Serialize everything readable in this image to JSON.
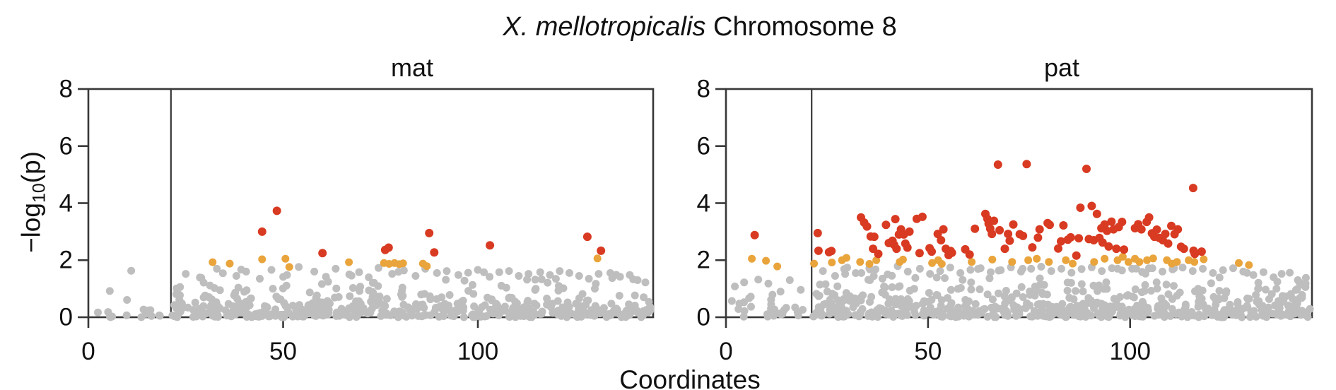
{
  "title": {
    "species": "X. mellotropicalis",
    "rest": " Chromosome 8"
  },
  "chart_data": {
    "type": "scatter",
    "title": "X. mellotropicalis Chromosome 8",
    "xlabel": "Coordinates",
    "ylabel": "−log10(p)",
    "ylabel_parts": {
      "pre": "−log",
      "sub": "10",
      "post": "(p)"
    },
    "x_ticks": [
      0,
      50,
      100
    ],
    "y_ticks": [
      0,
      2,
      4,
      6,
      8
    ],
    "xlim": [
      0,
      145
    ],
    "ylim": [
      0,
      8
    ],
    "grid": false,
    "threshold_line_x": 21.2,
    "colors": {
      "gray": "#bebebe",
      "orange": "#e9a43c",
      "red": "#d83a22",
      "axis": "#383838"
    },
    "panels": [
      {
        "title": "mat",
        "red_points": [
          [
            44.6,
            3.0
          ],
          [
            48.4,
            3.73
          ],
          [
            60.1,
            2.25
          ],
          [
            76.2,
            2.36
          ],
          [
            77.1,
            2.44
          ],
          [
            87.5,
            2.95
          ],
          [
            88.8,
            2.27
          ],
          [
            103.1,
            2.52
          ],
          [
            128.1,
            2.82
          ],
          [
            131.6,
            2.33
          ]
        ],
        "orange_points": [
          [
            31.9,
            1.93
          ],
          [
            36.3,
            1.88
          ],
          [
            44.6,
            2.03
          ],
          [
            50.6,
            2.05
          ],
          [
            51.6,
            1.76
          ],
          [
            66.9,
            1.93
          ],
          [
            75.9,
            1.9
          ],
          [
            77.2,
            1.87
          ],
          [
            78.6,
            1.9
          ],
          [
            79.8,
            1.86
          ],
          [
            80.8,
            1.89
          ],
          [
            85.9,
            1.88
          ],
          [
            86.9,
            1.79
          ],
          [
            130.7,
            2.06
          ]
        ],
        "gray_points": [
          [
            11.0,
            1.63
          ],
          [
            5.5,
            0.92
          ],
          [
            25,
            1.52
          ],
          [
            29,
            1.38
          ],
          [
            33,
            1.7
          ],
          [
            38,
            1.45
          ],
          [
            40.5,
            1.6
          ],
          [
            44,
            1.35
          ],
          [
            47,
            1.66
          ],
          [
            51,
            1.48
          ],
          [
            54,
            1.76
          ],
          [
            58,
            1.6
          ],
          [
            61,
            1.42
          ],
          [
            63.5,
            1.7
          ],
          [
            67,
            1.5
          ],
          [
            69.5,
            1.58
          ],
          [
            72,
            1.4
          ],
          [
            74.5,
            1.73
          ],
          [
            78,
            1.52
          ],
          [
            81,
            1.64
          ],
          [
            84,
            1.45
          ],
          [
            86.5,
            1.7
          ],
          [
            89.5,
            1.55
          ],
          [
            92,
            1.62
          ],
          [
            95,
            1.48
          ],
          [
            97.5,
            1.56
          ],
          [
            100,
            1.66
          ],
          [
            103,
            1.42
          ],
          [
            105.5,
            1.58
          ],
          [
            108,
            1.62
          ],
          [
            110.5,
            1.45
          ],
          [
            113,
            1.52
          ],
          [
            116,
            1.58
          ],
          [
            118.5,
            1.48
          ],
          [
            121,
            1.62
          ],
          [
            123.5,
            1.55
          ],
          [
            126,
            1.45
          ],
          [
            128.5,
            1.35
          ],
          [
            131,
            1.52
          ],
          [
            134,
            1.55
          ],
          [
            136.5,
            1.42
          ],
          [
            139,
            1.48
          ],
          [
            141,
            1.3
          ],
          [
            143,
            1.22
          ]
        ],
        "gray_cloud": {
          "seed": 11,
          "count": 520,
          "x": [
            21.5,
            144.5
          ],
          "y_scale": 0.4,
          "y_cap": 0.985
        },
        "gray_cloud_left": {
          "seed": 5,
          "count": 15,
          "x": [
            0.8,
            20.2
          ],
          "y_scale": 0.2,
          "y_cap": 0.96
        }
      },
      {
        "title": "pat",
        "red_points": [
          [
            7.1,
            2.88
          ],
          [
            22.7,
            2.95
          ],
          [
            22.9,
            2.33
          ],
          [
            25.5,
            2.28
          ],
          [
            26.1,
            2.32
          ],
          [
            33.4,
            3.5
          ],
          [
            34.2,
            3.32
          ],
          [
            34.9,
            3.18
          ],
          [
            35.8,
            2.83
          ],
          [
            36.4,
            2.4
          ],
          [
            36.7,
            2.82
          ],
          [
            37.7,
            2.22
          ],
          [
            39.6,
            3.24
          ],
          [
            40.3,
            2.6
          ],
          [
            41.2,
            2.68
          ],
          [
            41.6,
            2.54
          ],
          [
            41.9,
            3.44
          ],
          [
            42.2,
            2.4
          ],
          [
            42.8,
            2.9
          ],
          [
            43.3,
            3.08
          ],
          [
            44.0,
            2.9
          ],
          [
            44.4,
            2.58
          ],
          [
            44.9,
            2.44
          ],
          [
            45.4,
            3.0
          ],
          [
            47.2,
            3.45
          ],
          [
            47.9,
            2.25
          ],
          [
            48.6,
            3.52
          ],
          [
            50.4,
            2.42
          ],
          [
            50.9,
            2.3
          ],
          [
            52.4,
            2.92
          ],
          [
            53.2,
            2.7
          ],
          [
            53.8,
            3.08
          ],
          [
            54.4,
            2.4
          ],
          [
            55.1,
            2.18
          ],
          [
            55.6,
            2.32
          ],
          [
            55.9,
            2.26
          ],
          [
            59.2,
            2.38
          ],
          [
            60.3,
            2.2
          ],
          [
            61.6,
            3.1
          ],
          [
            64.2,
            3.62
          ],
          [
            64.7,
            3.45
          ],
          [
            65.0,
            3.28
          ],
          [
            65.4,
            3.1
          ],
          [
            65.8,
            2.92
          ],
          [
            66.3,
            3.38
          ],
          [
            67.3,
            5.35
          ],
          [
            67.7,
            3.05
          ],
          [
            69.0,
            2.4
          ],
          [
            69.8,
            2.92
          ],
          [
            70.2,
            2.68
          ],
          [
            71.1,
            3.25
          ],
          [
            72.7,
            2.91
          ],
          [
            73.5,
            2.85
          ],
          [
            74.4,
            5.37
          ],
          [
            75.8,
            2.45
          ],
          [
            77.2,
            2.79
          ],
          [
            77.6,
            3.08
          ],
          [
            79.6,
            3.3
          ],
          [
            80.1,
            3.24
          ],
          [
            82.2,
            2.41
          ],
          [
            82.9,
            2.66
          ],
          [
            83.5,
            3.22
          ],
          [
            84.6,
            2.72
          ],
          [
            85.3,
            2.8
          ],
          [
            86.7,
            2.16
          ],
          [
            87.3,
            2.77
          ],
          [
            87.7,
            3.84
          ],
          [
            89.2,
            5.2
          ],
          [
            89.8,
            2.74
          ],
          [
            90.5,
            3.9
          ],
          [
            91.0,
            2.7
          ],
          [
            91.8,
            3.62
          ],
          [
            92.4,
            2.78
          ],
          [
            92.9,
            3.12
          ],
          [
            93.2,
            2.62
          ],
          [
            93.7,
            3.25
          ],
          [
            94.3,
            3.03
          ],
          [
            94.7,
            2.48
          ],
          [
            95.4,
            3.35
          ],
          [
            95.9,
            3.08
          ],
          [
            96.6,
            2.4
          ],
          [
            97.2,
            3.16
          ],
          [
            98.0,
            3.34
          ],
          [
            98.5,
            2.37
          ],
          [
            101.2,
            3.12
          ],
          [
            102.0,
            3.26
          ],
          [
            102.8,
            3.08
          ],
          [
            104.1,
            3.34
          ],
          [
            104.7,
            3.5
          ],
          [
            105.4,
            2.94
          ],
          [
            106.0,
            2.82
          ],
          [
            106.6,
            3.07
          ],
          [
            107.2,
            2.78
          ],
          [
            108.1,
            2.7
          ],
          [
            108.7,
            2.92
          ],
          [
            109.4,
            2.58
          ],
          [
            110.2,
            3.2
          ],
          [
            111.0,
            2.91
          ],
          [
            111.8,
            3.08
          ],
          [
            112.6,
            2.47
          ],
          [
            113.3,
            2.4
          ],
          [
            115.6,
            4.53
          ],
          [
            115.7,
            2.33
          ],
          [
            116.0,
            2.22
          ],
          [
            117.7,
            2.3
          ]
        ],
        "orange_points": [
          [
            6.4,
            2.05
          ],
          [
            9.9,
            1.98
          ],
          [
            12.7,
            1.78
          ],
          [
            21.8,
            1.88
          ],
          [
            26.2,
            1.92
          ],
          [
            28.7,
            2.0
          ],
          [
            29.8,
            2.08
          ],
          [
            33.2,
            1.94
          ],
          [
            35.5,
            1.87
          ],
          [
            37.2,
            2.0
          ],
          [
            43.0,
            1.94
          ],
          [
            43.8,
            2.02
          ],
          [
            51.0,
            1.9
          ],
          [
            52.5,
            2.0
          ],
          [
            53.4,
            1.87
          ],
          [
            60.8,
            1.94
          ],
          [
            65.9,
            2.02
          ],
          [
            70.8,
            1.94
          ],
          [
            74.8,
            2.0
          ],
          [
            76.9,
            2.05
          ],
          [
            79.9,
            1.94
          ],
          [
            84.1,
            2.0
          ],
          [
            85.8,
            1.88
          ],
          [
            91.1,
            1.94
          ],
          [
            93.7,
            2.05
          ],
          [
            96.9,
            2.0
          ],
          [
            98.2,
            2.12
          ],
          [
            99.6,
            1.94
          ],
          [
            101.2,
            2.05
          ],
          [
            102.3,
            1.94
          ],
          [
            104.2,
            2.0
          ],
          [
            105.7,
            2.06
          ],
          [
            109.1,
            2.0
          ],
          [
            110.3,
            1.88
          ],
          [
            111.6,
            1.94
          ],
          [
            114.5,
            2.0
          ],
          [
            115.9,
            1.94
          ],
          [
            118.2,
            2.03
          ],
          [
            126.9,
            1.9
          ],
          [
            129.4,
            1.83
          ]
        ],
        "gray_points": [
          [
            2.2,
            1.08
          ],
          [
            4.5,
            1.22
          ],
          [
            8.0,
            1.32
          ],
          [
            10.5,
            1.18
          ],
          [
            13.5,
            0.9
          ],
          [
            15.8,
            1.3
          ],
          [
            18.5,
            0.96
          ],
          [
            24,
            1.62
          ],
          [
            27,
            1.45
          ],
          [
            30,
            1.74
          ],
          [
            33.5,
            1.55
          ],
          [
            37,
            1.68
          ],
          [
            40,
            1.5
          ],
          [
            42.5,
            1.79
          ],
          [
            45,
            1.6
          ],
          [
            48,
            1.7
          ],
          [
            50.5,
            1.52
          ],
          [
            53,
            1.62
          ],
          [
            55.5,
            1.74
          ],
          [
            58,
            1.55
          ],
          [
            60.5,
            1.66
          ],
          [
            63,
            1.72
          ],
          [
            65.5,
            1.58
          ],
          [
            68,
            1.65
          ],
          [
            70.5,
            1.75
          ],
          [
            73,
            1.6
          ],
          [
            75.5,
            1.7
          ],
          [
            78,
            1.77
          ],
          [
            80.5,
            1.62
          ],
          [
            83,
            1.7
          ],
          [
            85.5,
            1.56
          ],
          [
            88,
            1.69
          ],
          [
            90.5,
            1.75
          ],
          [
            93,
            1.62
          ],
          [
            95.5,
            1.72
          ],
          [
            98,
            1.64
          ],
          [
            100.5,
            1.7
          ],
          [
            103,
            1.58
          ],
          [
            105.5,
            1.72
          ],
          [
            108,
            1.6
          ],
          [
            110.5,
            1.68
          ],
          [
            113,
            1.74
          ],
          [
            115.5,
            1.62
          ],
          [
            118,
            1.7
          ],
          [
            120.5,
            1.55
          ],
          [
            123,
            1.65
          ],
          [
            125.5,
            1.72
          ],
          [
            128,
            1.6
          ],
          [
            130.5,
            1.48
          ],
          [
            133,
            1.58
          ],
          [
            135.5,
            1.4
          ],
          [
            137.5,
            1.52
          ],
          [
            139.5,
            1.56
          ],
          [
            141.5,
            1.3
          ],
          [
            143.5,
            1.38
          ]
        ],
        "gray_cloud": {
          "seed": 23,
          "count": 600,
          "x": [
            21.5,
            144.6
          ],
          "y_scale": 0.43,
          "y_cap": 0.987
        },
        "gray_cloud_left": {
          "seed": 9,
          "count": 28,
          "x": [
            0.5,
            20.4
          ],
          "y_scale": 0.3,
          "y_cap": 0.97
        }
      }
    ]
  }
}
